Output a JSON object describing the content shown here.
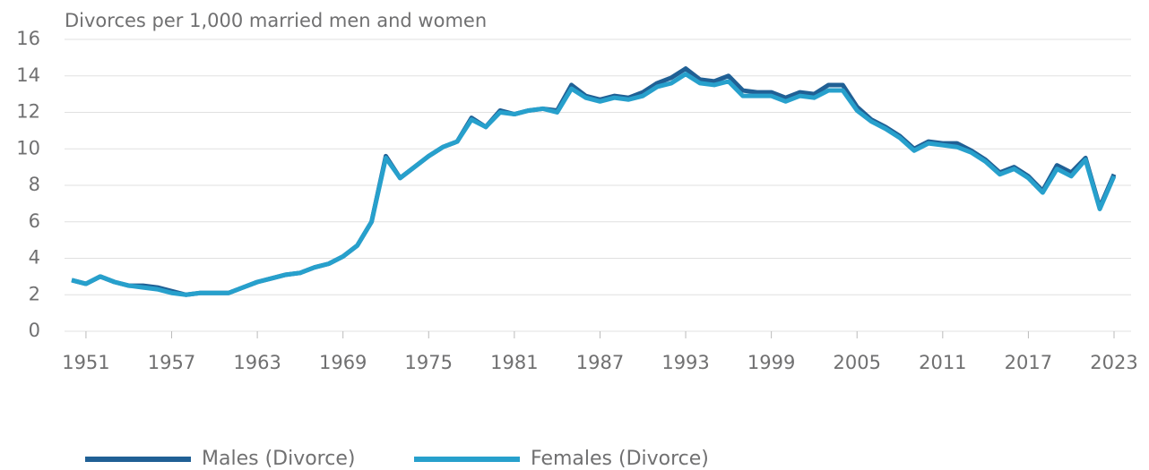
{
  "chart_data": {
    "type": "line",
    "title": "Divorces per 1,000 married men and women",
    "x": [
      1950,
      1951,
      1952,
      1953,
      1954,
      1955,
      1956,
      1957,
      1958,
      1959,
      1960,
      1961,
      1962,
      1963,
      1964,
      1965,
      1966,
      1967,
      1968,
      1969,
      1970,
      1971,
      1972,
      1973,
      1974,
      1975,
      1976,
      1977,
      1978,
      1979,
      1980,
      1981,
      1982,
      1983,
      1984,
      1985,
      1986,
      1987,
      1988,
      1989,
      1990,
      1991,
      1992,
      1993,
      1994,
      1995,
      1996,
      1997,
      1998,
      1999,
      2000,
      2001,
      2002,
      2003,
      2004,
      2005,
      2006,
      2007,
      2008,
      2009,
      2010,
      2011,
      2012,
      2013,
      2014,
      2015,
      2016,
      2017,
      2018,
      2019,
      2020,
      2021,
      2022,
      2023
    ],
    "series": [
      {
        "name": "Males (Divorce)",
        "color": "#206095",
        "values": [
          2.8,
          2.6,
          3.0,
          2.7,
          2.5,
          2.5,
          2.4,
          2.2,
          2.0,
          2.1,
          2.1,
          2.1,
          2.4,
          2.7,
          2.9,
          3.1,
          3.2,
          3.5,
          3.7,
          4.1,
          4.7,
          6.0,
          9.6,
          8.4,
          9.0,
          9.6,
          10.1,
          10.4,
          11.7,
          11.2,
          12.1,
          11.9,
          12.1,
          12.2,
          12.1,
          13.5,
          12.9,
          12.7,
          12.9,
          12.8,
          13.1,
          13.6,
          13.9,
          14.4,
          13.8,
          13.7,
          14.0,
          13.2,
          13.1,
          13.1,
          12.8,
          13.1,
          13.0,
          13.5,
          13.5,
          12.3,
          11.6,
          11.2,
          10.7,
          10.0,
          10.4,
          10.3,
          10.3,
          9.9,
          9.4,
          8.7,
          9.0,
          8.5,
          7.7,
          9.1,
          8.7,
          9.5,
          6.8,
          8.6
        ]
      },
      {
        "name": "Females (Divorce)",
        "color": "#27a0cc",
        "values": [
          2.8,
          2.6,
          3.0,
          2.7,
          2.5,
          2.4,
          2.3,
          2.1,
          2.0,
          2.1,
          2.1,
          2.1,
          2.4,
          2.7,
          2.9,
          3.1,
          3.2,
          3.5,
          3.7,
          4.1,
          4.7,
          6.0,
          9.5,
          8.4,
          9.0,
          9.6,
          10.1,
          10.4,
          11.6,
          11.2,
          12.0,
          11.9,
          12.1,
          12.2,
          12.0,
          13.3,
          12.8,
          12.6,
          12.8,
          12.7,
          12.9,
          13.4,
          13.6,
          14.1,
          13.6,
          13.5,
          13.7,
          12.9,
          12.9,
          12.9,
          12.6,
          12.9,
          12.8,
          13.2,
          13.2,
          12.1,
          11.5,
          11.1,
          10.6,
          9.9,
          10.3,
          10.2,
          10.1,
          9.8,
          9.3,
          8.6,
          8.9,
          8.4,
          7.6,
          8.9,
          8.5,
          9.4,
          6.7,
          8.5
        ]
      }
    ],
    "xlim": [
      1950,
      2023
    ],
    "xticks": [
      1951,
      1957,
      1963,
      1969,
      1975,
      1981,
      1987,
      1993,
      1999,
      2005,
      2011,
      2017,
      2023
    ],
    "ylim": [
      0,
      16
    ],
    "yticks": [
      0,
      2,
      4,
      6,
      8,
      10,
      12,
      14,
      16
    ],
    "grid": true,
    "legend": "bottom"
  }
}
